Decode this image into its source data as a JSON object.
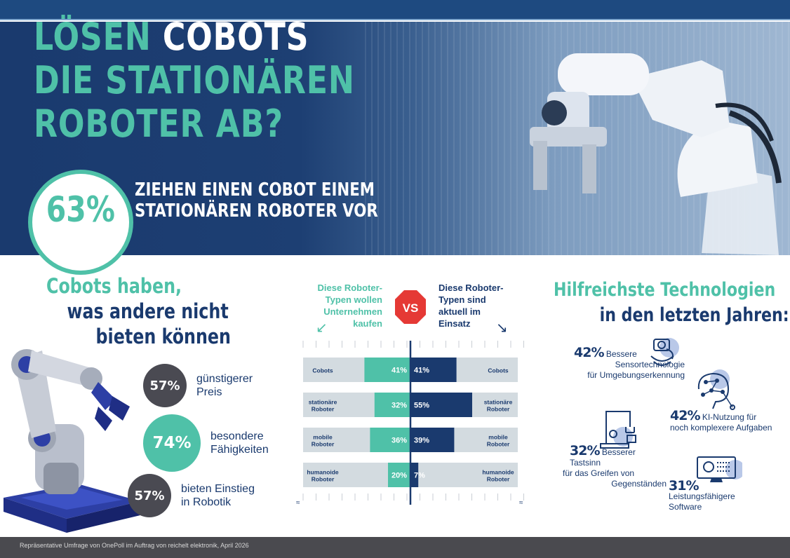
{
  "hero": {
    "title_line1_a": "LÖSEN ",
    "title_line1_b": "COBOTS",
    "title_line2": "DIE STATIONÄREN",
    "title_line3": "ROBOTER AB?",
    "big_pct": "63%",
    "claim_line1": "ZIEHEN EINEN COBOT EINEM",
    "claim_line2": "STATIONÄREN ROBOTER VOR"
  },
  "left": {
    "heading_line1": "Cobots haben,",
    "heading_line2": "was andere nicht",
    "heading_line3": "bieten können",
    "stats": [
      {
        "pct": "57%",
        "line1": "günstigerer",
        "line2": "Preis"
      },
      {
        "pct": "74%",
        "line1": "besondere",
        "line2": "Fähigkeiten"
      },
      {
        "pct": "57%",
        "line1": "bieten Einstieg",
        "line2": "in Robotik"
      }
    ]
  },
  "middle": {
    "left_label": [
      "Diese Roboter-",
      "Typen wollen",
      "Unternehmen",
      "kaufen"
    ],
    "right_label": [
      "Diese Roboter-",
      "Typen sind",
      "aktuell im",
      "Einsatz"
    ],
    "vs": "VS"
  },
  "chart_data": {
    "type": "bar",
    "categories": [
      "Cobots",
      "stationäre Roboter",
      "mobile Roboter",
      "humanoide Roboter"
    ],
    "series": [
      {
        "name": "Diese Roboter-Typen wollen Unternehmen kaufen",
        "values": [
          41,
          32,
          36,
          20
        ],
        "labels": [
          "41%",
          "32%",
          "36%",
          "20%"
        ]
      },
      {
        "name": "Diese Roboter-Typen sind aktuell im Einsatz",
        "values": [
          41,
          55,
          39,
          7
        ],
        "labels": [
          "41%",
          "55%",
          "39%",
          "7%"
        ]
      }
    ],
    "category_lines": [
      [
        "Cobots"
      ],
      [
        "stationäre",
        "Roboter"
      ],
      [
        "mobile",
        "Roboter"
      ],
      [
        "humanoide",
        "Roboter"
      ]
    ],
    "colors": {
      "buy": "#4fc1a8",
      "use": "#1a3a6e",
      "track": "#d3dbe0"
    },
    "axis_break_mark": "≈"
  },
  "right": {
    "heading_line1": "Hilfreichste Technologien",
    "heading_line2": "in den letzten Jahren:",
    "items": [
      {
        "pct": "42%",
        "line1": "Bessere",
        "line2": "Sensortechnologie",
        "line3": "für Umgebungserkennung",
        "icon": "sensor-icon"
      },
      {
        "pct": "42%",
        "line1": "KI-Nutzung für",
        "line2": "noch komplexere Aufgaben",
        "icon": "ai-brain-icon"
      },
      {
        "pct": "32%",
        "line1": "Besserer Tastsinn",
        "line2": "für das Greifen von",
        "line3": "Gegenständen",
        "icon": "gripper-arm-icon"
      },
      {
        "pct": "31%",
        "line1": "Leistungsfähigere",
        "line2": "Software",
        "icon": "monitor-software-icon"
      }
    ]
  },
  "footer": {
    "text": "Repräsentative Umfrage von OnePoll im Auftrag von reichelt elektronik, April 2026"
  },
  "colors": {
    "teal": "#4fc1a8",
    "navy": "#1a3a6e",
    "gray_circle": "#4a4a52"
  }
}
